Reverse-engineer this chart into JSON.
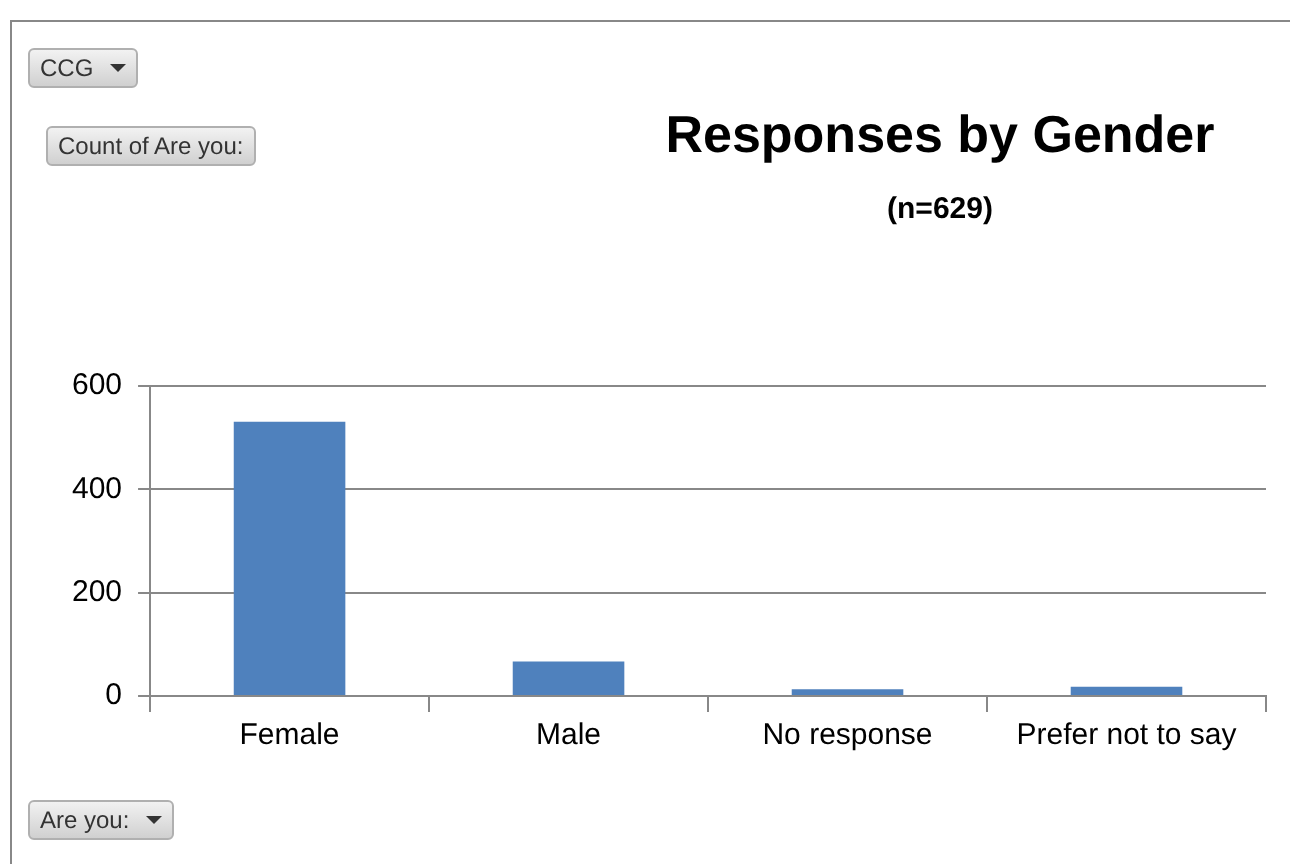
{
  "chart_data": {
    "type": "bar",
    "title": "Responses by Gender",
    "subtitle": "(n=629)",
    "categories": [
      "Female",
      "Male",
      "No response",
      "Prefer not to say"
    ],
    "values": [
      531,
      67,
      13,
      18
    ],
    "color": "#4f81bd",
    "ylim": [
      0,
      600
    ],
    "yticks": [
      0,
      200,
      400,
      600
    ],
    "grid": "y",
    "legend": false,
    "annotations": [
      "CCG",
      "Count of Are you:",
      "Are you:"
    ]
  }
}
